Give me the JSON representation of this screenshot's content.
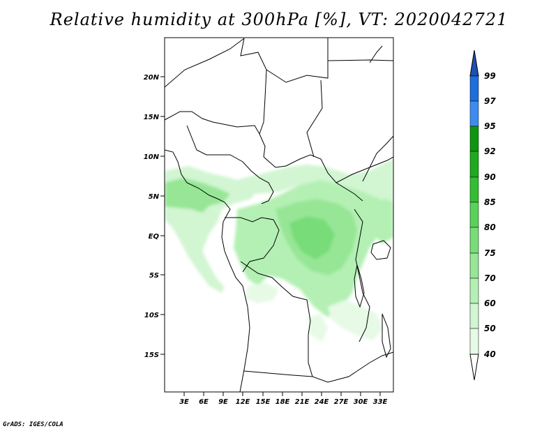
{
  "title": "Relative humidity at 300hPa [%], VT: 2020042721",
  "credit": "GrADS: IGES/COLA",
  "map": {
    "lat_labels": [
      "20N",
      "15N",
      "10N",
      "5N",
      "EQ",
      "5S",
      "10S",
      "15S"
    ],
    "lon_labels": [
      "3E",
      "6E",
      "9E",
      "12E",
      "15E",
      "18E",
      "21E",
      "24E",
      "27E",
      "30E",
      "33E"
    ],
    "lon_range": [
      0,
      35
    ],
    "lat_range": [
      -20,
      25
    ]
  },
  "colorbar": {
    "levels": [
      "40",
      "50",
      "60",
      "70",
      "75",
      "80",
      "85",
      "90",
      "92",
      "95",
      "97",
      "99"
    ],
    "colors": [
      "#ffffff",
      "#e6fae6",
      "#d2f5d2",
      "#b4f0b4",
      "#96e696",
      "#78dc78",
      "#5ad25a",
      "#32be32",
      "#1eaa1e",
      "#0f960f",
      "#3c8cf0",
      "#1e6edc",
      "#1e50b4"
    ]
  }
}
